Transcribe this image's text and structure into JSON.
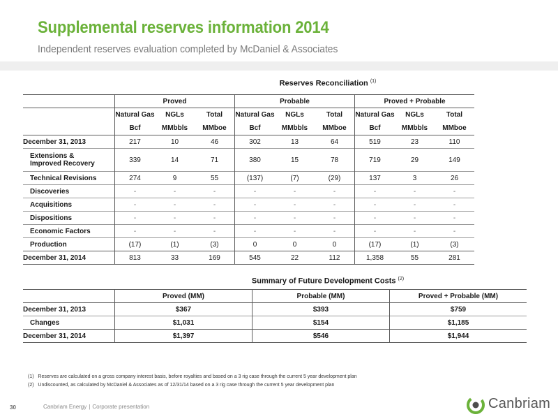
{
  "slide": {
    "title": "Supplemental reserves information 2014",
    "subtitle": "Independent reserves evaluation completed by McDaniel & Associates",
    "page_number": "30",
    "company": "Canbriam Energy",
    "separator": "|",
    "presentation": "Corporate presentation",
    "logo_text": "Canbriam",
    "accent_color": "#6bb23a"
  },
  "reserves": {
    "title": "Reserves Reconciliation",
    "note_ref": "(1)",
    "groups": [
      "Proved",
      "Probable",
      "Proved + Probable"
    ],
    "units_top": [
      "Natural Gas",
      "NGLs",
      "Total"
    ],
    "units_bottom": [
      "Bcf",
      "MMbbls",
      "MMboe"
    ],
    "rows": [
      {
        "label": "December 31, 2013",
        "values": [
          "217",
          "10",
          "46",
          "302",
          "13",
          "64",
          "519",
          "23",
          "110"
        ]
      },
      {
        "label": "Extensions &",
        "label2": "Improved Recovery",
        "values": [
          "339",
          "14",
          "71",
          "380",
          "15",
          "78",
          "719",
          "29",
          "149"
        ]
      },
      {
        "label": "Technical Revisions",
        "values": [
          "274",
          "9",
          "55",
          "(137)",
          "(7)",
          "(29)",
          "137",
          "3",
          "26"
        ]
      },
      {
        "label": "Discoveries",
        "values": [
          "-",
          "-",
          "-",
          "-",
          "-",
          "-",
          "-",
          "-",
          "-"
        ]
      },
      {
        "label": "Acquisitions",
        "values": [
          "-",
          "-",
          "-",
          "-",
          "-",
          "-",
          "-",
          "-",
          "-"
        ]
      },
      {
        "label": "Dispositions",
        "values": [
          "-",
          "-",
          "-",
          "-",
          "-",
          "-",
          "-",
          "-",
          "-"
        ]
      },
      {
        "label": "Economic Factors",
        "values": [
          "-",
          "-",
          "-",
          "-",
          "-",
          "-",
          "-",
          "-",
          "-"
        ]
      },
      {
        "label": "Production",
        "values": [
          "(17)",
          "(1)",
          "(3)",
          "0",
          "0",
          "0",
          "(17)",
          "(1)",
          "(3)"
        ]
      },
      {
        "label": "December 31, 2014",
        "values": [
          "813",
          "33",
          "169",
          "545",
          "22",
          "112",
          "1,358",
          "55",
          "281"
        ]
      }
    ]
  },
  "fdc": {
    "title": "Summary of Future Development Costs",
    "note_ref": "(2)",
    "headers": [
      "Proved (MM)",
      "Probable (MM)",
      "Proved + Probable (MM)"
    ],
    "rows": [
      {
        "label": "December 31, 2013",
        "values": [
          "$367",
          "$393",
          "$759"
        ]
      },
      {
        "label": "Changes",
        "values": [
          "$1,031",
          "$154",
          "$1,185"
        ]
      },
      {
        "label": "December 31, 2014",
        "values": [
          "$1,397",
          "$546",
          "$1,944"
        ]
      }
    ]
  },
  "footnotes": [
    {
      "num": "(1)",
      "text": "Reserves are calculated on a gross company interest basis, before royalties and based on a 3 rig case through the current 5 year development plan"
    },
    {
      "num": "(2)",
      "text": "Undiscounted, as calculated by McDaniel & Associates as of 12/31/14 based on a 3 rig case through the current 5 year development plan"
    }
  ]
}
